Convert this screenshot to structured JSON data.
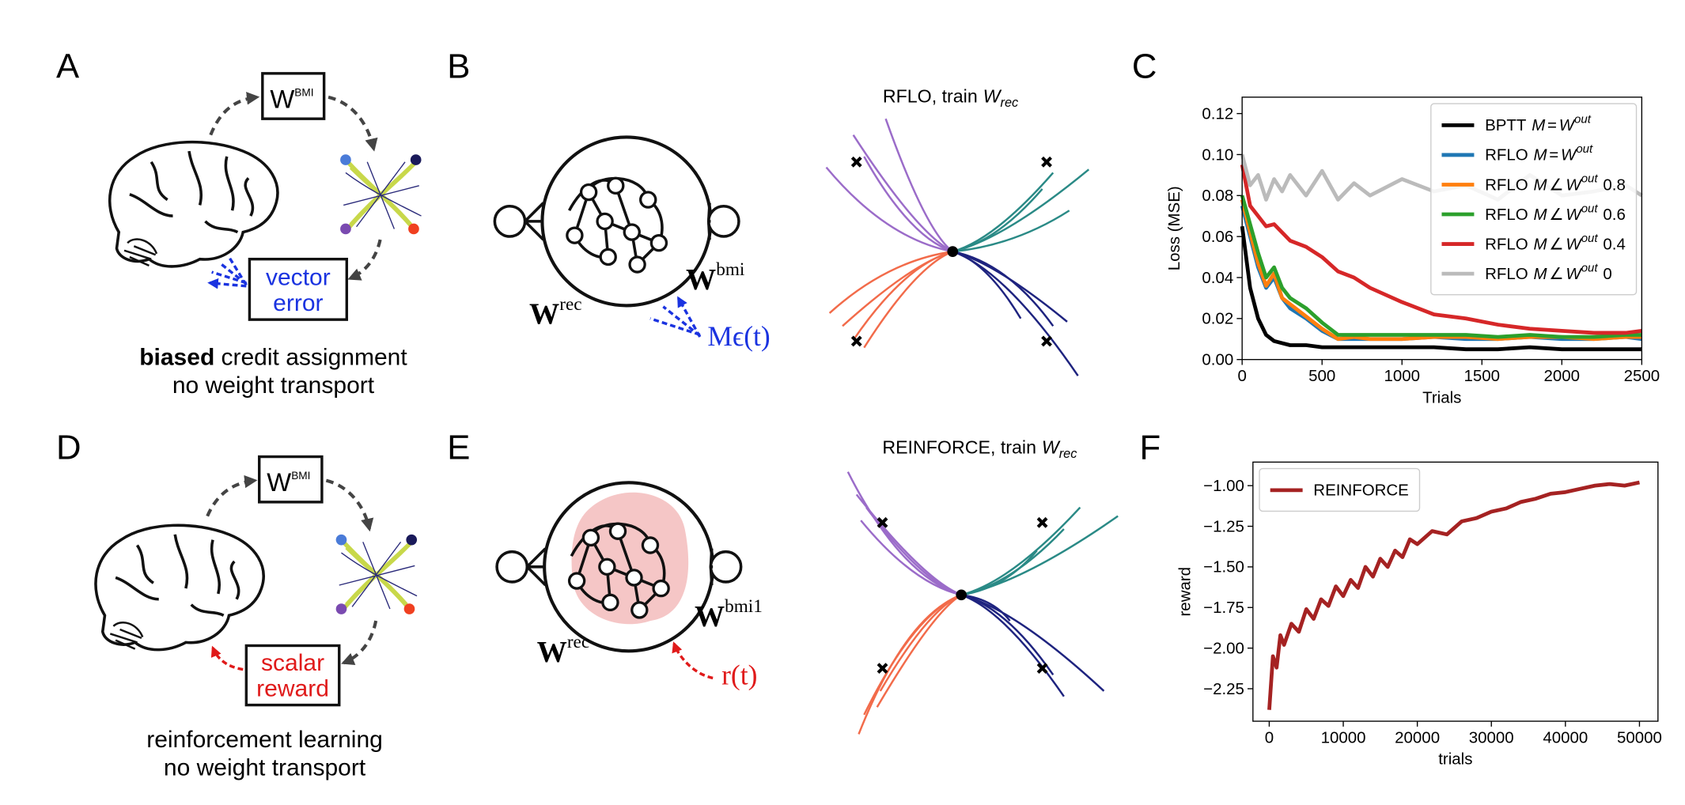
{
  "panel_labels": [
    "A",
    "B",
    "C",
    "D",
    "E",
    "F"
  ],
  "panel_a": {
    "node_base": "W",
    "node_sup": "BMI",
    "box": [
      "vector",
      "error"
    ],
    "caption_bold": "biased",
    "caption": [
      "credit assignment",
      "no weight transport"
    ]
  },
  "panel_b": {
    "w_rec": {
      "base": "W",
      "sup": "rec"
    },
    "w_out": {
      "base": "W",
      "sup": "bmi"
    },
    "signal": "Mϵ(t)",
    "trajectory_title": {
      "text": "RFLO, train",
      "var": "W",
      "sub": "rec"
    }
  },
  "panel_d": {
    "node_base": "W",
    "node_sup": "BMI",
    "box": [
      "scalar",
      "reward"
    ],
    "caption": [
      "reinforcement learning",
      "no weight transport"
    ]
  },
  "panel_e": {
    "w_rec": {
      "base": "W",
      "sup": "rec"
    },
    "w_out": {
      "base": "W",
      "sup": "bmi1"
    },
    "signal": "r(t)",
    "trajectory_title": {
      "text": "REINFORCE, train",
      "var": "W",
      "sub": "rec"
    }
  },
  "chart_data": [
    {
      "type": "line",
      "x_label": "Trials",
      "y_label": "Loss (MSE)",
      "legend": "upper right",
      "x": [
        0,
        50,
        100,
        150,
        200,
        250,
        300,
        400,
        500,
        600,
        700,
        800,
        1000,
        1200,
        1400,
        1600,
        1800,
        2000,
        2200,
        2400,
        2500
      ],
      "xlim": [
        0,
        2500
      ],
      "ylim": [
        0,
        0.128
      ],
      "xticks": [
        0,
        500,
        1000,
        1500,
        2000,
        2500
      ],
      "yticks": [
        {
          "value": 0,
          "label": "0.00"
        },
        {
          "value": 0.02,
          "label": "0.02"
        },
        {
          "value": 0.04,
          "label": "0.04"
        },
        {
          "value": 0.06,
          "label": "0.06"
        },
        {
          "value": 0.08,
          "label": "0.08"
        },
        {
          "value": 0.1,
          "label": "0.10"
        },
        {
          "value": 0.12,
          "label": "0.12"
        }
      ],
      "series": [
        {
          "name": "BPTT",
          "formula": [
            "M",
            "=",
            "W",
            "out"
          ],
          "color": "#000000",
          "values": [
            0.065,
            0.035,
            0.02,
            0.012,
            0.009,
            0.008,
            0.007,
            0.007,
            0.006,
            0.006,
            0.006,
            0.006,
            0.006,
            0.006,
            0.005,
            0.005,
            0.006,
            0.005,
            0.005,
            0.005,
            0.005
          ]
        },
        {
          "name": "RFLO",
          "formula": [
            "M",
            "=",
            "W",
            "out"
          ],
          "color": "#1f77b4",
          "values": [
            0.075,
            0.06,
            0.045,
            0.035,
            0.04,
            0.03,
            0.025,
            0.02,
            0.014,
            0.01,
            0.01,
            0.01,
            0.01,
            0.011,
            0.01,
            0.01,
            0.011,
            0.01,
            0.01,
            0.011,
            0.01
          ]
        },
        {
          "name": "RFLO",
          "formula": [
            "M",
            "∠",
            "W",
            "out"
          ],
          "suffix": "0.8",
          "color": "#ff7f0e",
          "values": [
            0.078,
            0.062,
            0.047,
            0.036,
            0.042,
            0.03,
            0.027,
            0.021,
            0.015,
            0.01,
            0.011,
            0.01,
            0.01,
            0.011,
            0.011,
            0.01,
            0.011,
            0.011,
            0.01,
            0.011,
            0.011
          ]
        },
        {
          "name": "RFLO",
          "formula": [
            "M",
            "∠",
            "W",
            "out"
          ],
          "suffix": "0.6",
          "color": "#2ca02c",
          "values": [
            0.08,
            0.066,
            0.052,
            0.04,
            0.045,
            0.035,
            0.03,
            0.025,
            0.018,
            0.012,
            0.012,
            0.012,
            0.012,
            0.012,
            0.012,
            0.011,
            0.012,
            0.011,
            0.011,
            0.012,
            0.012
          ]
        },
        {
          "name": "RFLO",
          "formula": [
            "M",
            "∠",
            "W",
            "out"
          ],
          "suffix": "0.4",
          "color": "#d62728",
          "values": [
            0.095,
            0.075,
            0.07,
            0.065,
            0.066,
            0.062,
            0.058,
            0.055,
            0.05,
            0.043,
            0.04,
            0.035,
            0.028,
            0.022,
            0.02,
            0.017,
            0.015,
            0.014,
            0.013,
            0.013,
            0.014
          ]
        },
        {
          "name": "RFLO",
          "formula": [
            "M",
            "∠",
            "W",
            "out"
          ],
          "suffix": "0",
          "color": "#bbbbbb",
          "values": [
            0.1,
            0.085,
            0.09,
            0.078,
            0.088,
            0.082,
            0.09,
            0.08,
            0.092,
            0.078,
            0.086,
            0.08,
            0.088,
            0.082,
            0.085,
            0.078,
            0.09,
            0.08,
            0.082,
            0.085,
            0.08
          ]
        }
      ]
    },
    {
      "type": "line",
      "x_label": "trials",
      "y_label": "reward",
      "legend": "upper left",
      "x": [
        0,
        500,
        1000,
        1500,
        2000,
        3000,
        4000,
        5000,
        6000,
        7000,
        8000,
        9000,
        10000,
        11000,
        12000,
        13000,
        14000,
        15000,
        16000,
        17000,
        18000,
        19000,
        20000,
        22000,
        24000,
        26000,
        28000,
        30000,
        32000,
        34000,
        36000,
        38000,
        40000,
        42000,
        44000,
        46000,
        48000,
        50000
      ],
      "xlim": [
        -2200,
        52500
      ],
      "ylim": [
        -2.45,
        -0.855
      ],
      "xticks": [
        0,
        10000,
        20000,
        30000,
        40000,
        50000
      ],
      "yticks": [
        {
          "value": -2.25,
          "label": "−2.25"
        },
        {
          "value": -2.0,
          "label": "−2.00"
        },
        {
          "value": -1.75,
          "label": "−1.75"
        },
        {
          "value": -1.5,
          "label": "−1.50"
        },
        {
          "value": -1.25,
          "label": "−1.25"
        },
        {
          "value": -1.0,
          "label": "−1.00"
        }
      ],
      "series": [
        {
          "name": "REINFORCE",
          "color": "#a52222",
          "values": [
            -2.38,
            -2.05,
            -2.12,
            -1.92,
            -1.98,
            -1.85,
            -1.9,
            -1.76,
            -1.82,
            -1.7,
            -1.74,
            -1.62,
            -1.68,
            -1.58,
            -1.63,
            -1.5,
            -1.56,
            -1.45,
            -1.5,
            -1.4,
            -1.44,
            -1.33,
            -1.36,
            -1.28,
            -1.3,
            -1.22,
            -1.2,
            -1.16,
            -1.14,
            -1.1,
            -1.08,
            -1.05,
            -1.04,
            -1.02,
            -1.0,
            -0.99,
            -1.0,
            -0.98
          ]
        }
      ]
    }
  ]
}
